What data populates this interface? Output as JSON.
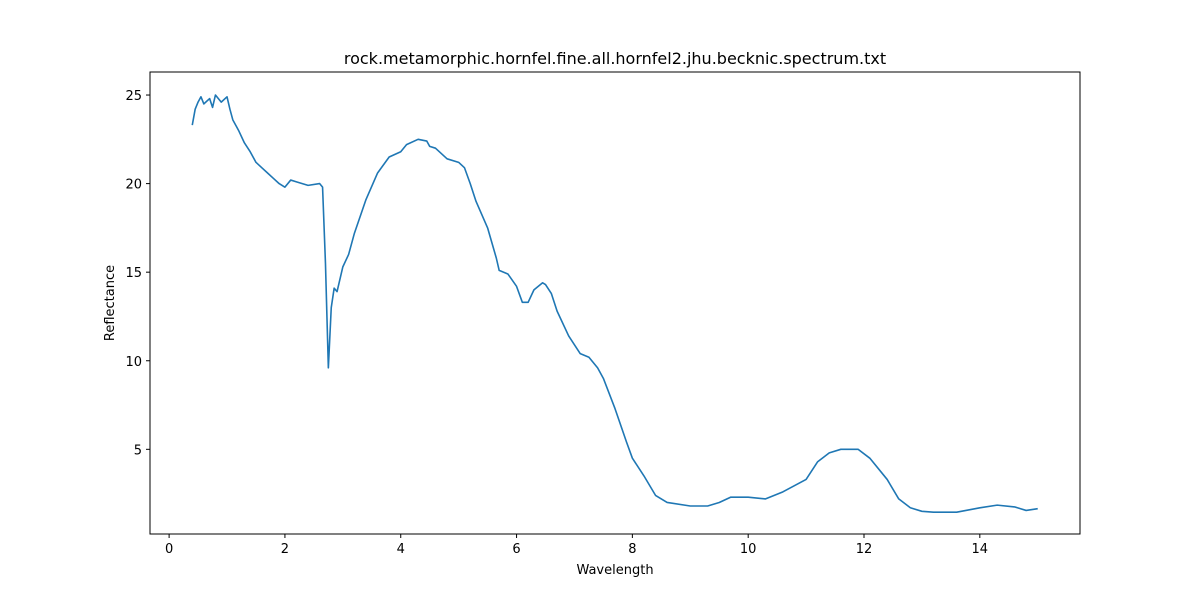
{
  "chart_data": {
    "type": "line",
    "title": "rock.metamorphic.hornfel.fine.all.hornfel2.jhu.becknic.spectrum.txt",
    "x_label": "Wavelength",
    "y_label": "Reflectance",
    "xlim": [
      -0.33,
      15.73
    ],
    "ylim": [
      0.22,
      26.3
    ],
    "xticks": [
      0,
      2,
      4,
      6,
      8,
      10,
      12,
      14
    ],
    "yticks": [
      5,
      10,
      15,
      20,
      25
    ],
    "grid": false,
    "series": [
      {
        "name": "Reflectance",
        "color": "#1f77b4",
        "x": [
          0.4,
          0.45,
          0.5,
          0.55,
          0.6,
          0.7,
          0.75,
          0.8,
          0.9,
          1.0,
          1.05,
          1.1,
          1.2,
          1.3,
          1.4,
          1.5,
          1.6,
          1.7,
          1.8,
          1.9,
          2.0,
          2.1,
          2.2,
          2.4,
          2.6,
          2.65,
          2.7,
          2.75,
          2.8,
          2.85,
          2.9,
          3.0,
          3.1,
          3.2,
          3.4,
          3.6,
          3.8,
          4.0,
          4.1,
          4.3,
          4.45,
          4.5,
          4.6,
          4.8,
          5.0,
          5.1,
          5.2,
          5.3,
          5.5,
          5.65,
          5.7,
          5.85,
          6.0,
          6.1,
          6.2,
          6.3,
          6.45,
          6.5,
          6.6,
          6.7,
          6.9,
          7.1,
          7.25,
          7.4,
          7.5,
          7.7,
          7.9,
          8.0,
          8.2,
          8.4,
          8.6,
          9.0,
          9.3,
          9.5,
          9.7,
          9.9,
          10.0,
          10.3,
          10.6,
          11.0,
          11.2,
          11.4,
          11.6,
          11.9,
          12.1,
          12.4,
          12.6,
          12.8,
          13.0,
          13.2,
          13.6,
          14.0,
          14.3,
          14.6,
          14.8,
          15.0
        ],
        "values": [
          23.3,
          24.2,
          24.6,
          24.9,
          24.5,
          24.8,
          24.3,
          25.0,
          24.6,
          24.9,
          24.2,
          23.6,
          23.0,
          22.3,
          21.8,
          21.2,
          20.9,
          20.6,
          20.3,
          20.0,
          19.8,
          20.2,
          20.1,
          19.9,
          20.0,
          19.8,
          15.5,
          9.6,
          13.0,
          14.1,
          13.9,
          15.3,
          16.0,
          17.2,
          19.1,
          20.6,
          21.5,
          21.8,
          22.2,
          22.5,
          22.4,
          22.1,
          22.0,
          21.4,
          21.2,
          20.9,
          20.0,
          19.0,
          17.5,
          15.8,
          15.1,
          14.9,
          14.2,
          13.3,
          13.3,
          14.0,
          14.4,
          14.3,
          13.8,
          12.8,
          11.4,
          10.4,
          10.2,
          9.6,
          9.0,
          7.3,
          5.4,
          4.5,
          3.5,
          2.4,
          2.0,
          1.8,
          1.8,
          2.0,
          2.3,
          2.3,
          2.3,
          2.2,
          2.6,
          3.3,
          4.3,
          4.8,
          5.0,
          5.0,
          4.5,
          3.3,
          2.2,
          1.7,
          1.5,
          1.45,
          1.45,
          1.7,
          1.85,
          1.75,
          1.55,
          1.65
        ]
      }
    ]
  }
}
